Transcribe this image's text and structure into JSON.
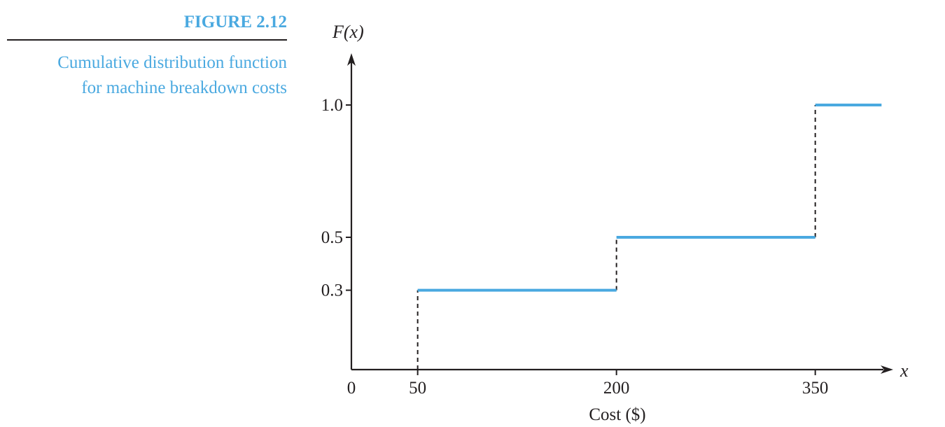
{
  "figure": {
    "label": "FIGURE 2.12",
    "caption_lines": [
      "Cumulative distribution function",
      "for machine breakdown costs"
    ]
  },
  "chart_data": {
    "type": "line",
    "subtype": "step",
    "ylabel": "F(x)",
    "xvar": "x",
    "xlabel": "Cost ($)",
    "xlim": [
      0,
      390
    ],
    "ylim": [
      0,
      1.2
    ],
    "origin_label": "0",
    "x_ticks": [
      50,
      200,
      350
    ],
    "y_ticks": [
      0.3,
      0.5,
      1.0
    ],
    "x_tick_labels": [
      "50",
      "200",
      "350"
    ],
    "y_tick_labels": [
      "0.3",
      "0.5",
      "1.0"
    ],
    "steps": [
      {
        "x_start": 50,
        "x_end": 200,
        "y": 0.3
      },
      {
        "x_start": 200,
        "x_end": 350,
        "y": 0.5
      },
      {
        "x_start": 350,
        "x_end": 400,
        "y": 1.0
      }
    ],
    "jumps": [
      {
        "x": 50,
        "y_from": 0,
        "y_to": 0.3
      },
      {
        "x": 200,
        "y_from": 0.3,
        "y_to": 0.5
      },
      {
        "x": 350,
        "y_from": 0.5,
        "y_to": 1.0
      }
    ],
    "colors": {
      "steps": "#4aa9e0",
      "axes": "#231f20"
    },
    "grid": false
  }
}
